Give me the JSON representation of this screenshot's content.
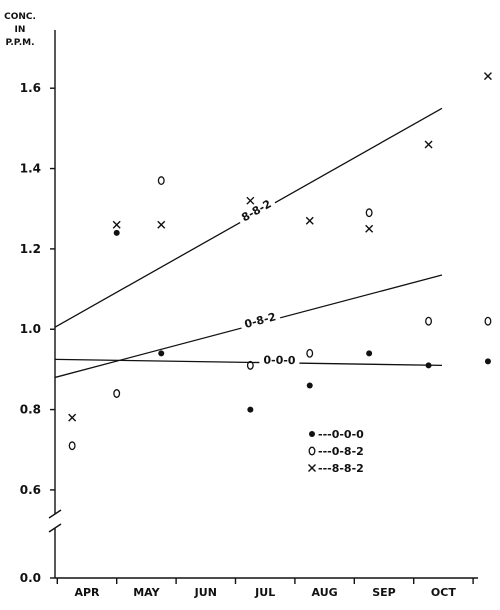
{
  "chart_data": {
    "type": "scatter",
    "ylabel_lines": [
      "CONC.",
      "IN",
      "P.P.M."
    ],
    "xlabel": "",
    "categories": [
      "APR",
      "MAY",
      "JUN",
      "JUL",
      "AUG",
      "SEP",
      "OCT"
    ],
    "yticks": [
      {
        "value": 0.0,
        "label": "0.0"
      },
      {
        "value": 0.6,
        "label": "0.6"
      },
      {
        "value": 0.8,
        "label": "0.8"
      },
      {
        "value": 1.0,
        "label": "1.0"
      },
      {
        "value": 1.2,
        "label": "1.2"
      },
      {
        "value": 1.4,
        "label": "1.4"
      },
      {
        "value": 1.6,
        "label": "1.6"
      }
    ],
    "axis_break": true,
    "ylim_upper": [
      0.55,
      1.72
    ],
    "grid": false,
    "legend_position": "lower-right",
    "series": [
      {
        "name": "0-0-0",
        "legend": "●---0-0-0",
        "marker": "filled-dot",
        "points": [
          {
            "x": 0.5,
            "y": 1.24
          },
          {
            "x": 1.25,
            "y": 0.94
          },
          {
            "x": 2.75,
            "y": 0.8
          },
          {
            "x": 3.75,
            "y": 0.86
          },
          {
            "x": 4.75,
            "y": 0.94
          },
          {
            "x": 5.75,
            "y": 0.91
          },
          {
            "x": 6.75,
            "y": 0.92
          }
        ],
        "trend": {
          "label": "0-0-0",
          "y_start": 0.925,
          "y_end": 0.91
        }
      },
      {
        "name": "0-8-2",
        "legend": "o---0-8-2",
        "marker": "open-oval",
        "points": [
          {
            "x": -0.25,
            "y": 0.71
          },
          {
            "x": 0.5,
            "y": 0.84
          },
          {
            "x": 1.25,
            "y": 1.37
          },
          {
            "x": 2.75,
            "y": 0.91
          },
          {
            "x": 3.75,
            "y": 0.94
          },
          {
            "x": 4.75,
            "y": 1.29
          },
          {
            "x": 5.75,
            "y": 1.02
          },
          {
            "x": 6.75,
            "y": 1.02
          }
        ],
        "trend": {
          "label": "0-8-2",
          "y_start": 0.88,
          "y_end": 1.135
        }
      },
      {
        "name": "8-8-2",
        "legend": "x---8-8-2",
        "marker": "x",
        "points": [
          {
            "x": -0.25,
            "y": 0.78
          },
          {
            "x": 0.5,
            "y": 1.26
          },
          {
            "x": 1.25,
            "y": 1.26
          },
          {
            "x": 2.75,
            "y": 1.32
          },
          {
            "x": 3.75,
            "y": 1.27
          },
          {
            "x": 4.75,
            "y": 1.25
          },
          {
            "x": 5.75,
            "y": 1.46
          },
          {
            "x": 6.75,
            "y": 1.63
          }
        ],
        "trend": {
          "label": "8-8-2",
          "y_start": 1.005,
          "y_end": 1.55
        }
      }
    ]
  }
}
